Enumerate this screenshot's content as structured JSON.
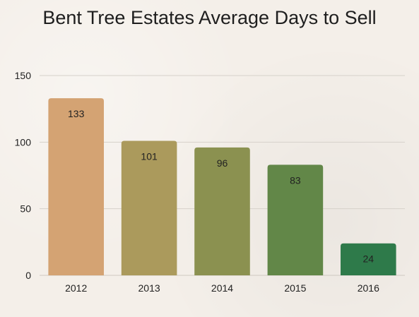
{
  "chart_data": {
    "type": "bar",
    "title": "Bent Tree Estates Average Days to Sell",
    "xlabel": "",
    "ylabel": "",
    "categories": [
      "2012",
      "2013",
      "2014",
      "2015",
      "2016"
    ],
    "values": [
      133,
      101,
      96,
      83,
      24
    ],
    "ylim": [
      0,
      150
    ],
    "yticks": [
      0,
      50,
      100,
      150
    ],
    "grid": true,
    "legend": "none",
    "bar_colors": [
      "#d4a373",
      "#ab9a5c",
      "#8b9150",
      "#628748",
      "#2e7a4a"
    ],
    "data_labels": true
  }
}
